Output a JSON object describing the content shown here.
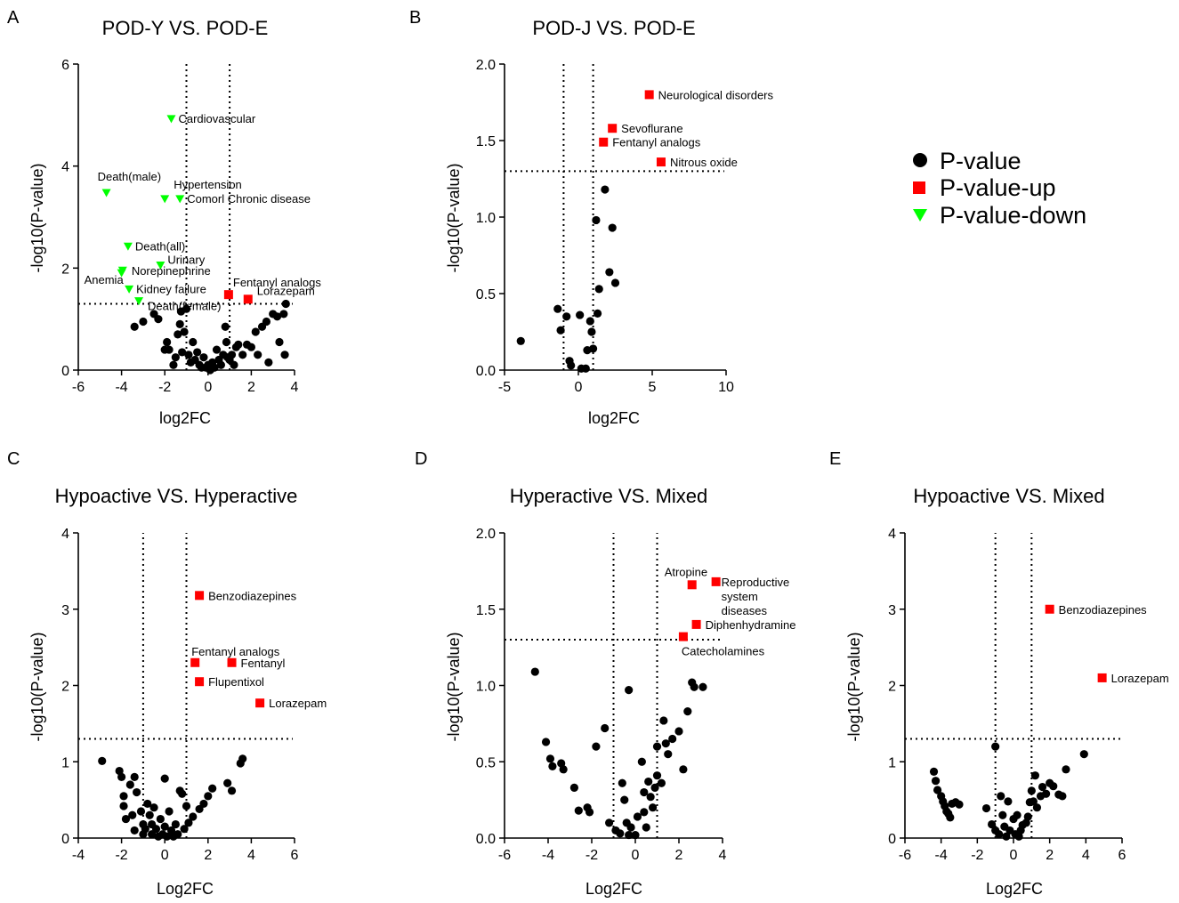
{
  "legend": {
    "items": [
      {
        "key": "circle",
        "label": "P-value",
        "color": "#000000"
      },
      {
        "key": "square",
        "label": "P-value-up",
        "color": "#ff0000"
      },
      {
        "key": "triangle",
        "label": "P-value-down",
        "color": "#00ff00"
      }
    ]
  },
  "chart_data": [
    {
      "id": "A",
      "panel_label": "A",
      "type": "scatter",
      "title": "POD-Y VS. POD-E",
      "xlabel": "log2FC",
      "ylabel": "-log10(P-value)",
      "xlim": [
        -6,
        4
      ],
      "ylim": [
        0,
        6
      ],
      "xticks": [
        -6,
        -4,
        -2,
        0,
        2,
        4
      ],
      "yticks": [
        0,
        2,
        4,
        6
      ],
      "vlines": [
        -1,
        1
      ],
      "hline": 1.3,
      "points": [
        [
          -3.4,
          0.85
        ],
        [
          -3.0,
          0.95
        ],
        [
          -2.5,
          1.1
        ],
        [
          -2.3,
          1.0
        ],
        [
          -2.0,
          0.4
        ],
        [
          -1.9,
          0.55
        ],
        [
          -1.8,
          0.4
        ],
        [
          -1.6,
          0.1
        ],
        [
          -1.5,
          0.25
        ],
        [
          -1.4,
          0.7
        ],
        [
          -1.3,
          0.9
        ],
        [
          -1.25,
          1.15
        ],
        [
          -1.2,
          0.35
        ],
        [
          -1.1,
          0.75
        ],
        [
          -1.0,
          1.2
        ],
        [
          -0.9,
          0.3
        ],
        [
          -0.8,
          0.15
        ],
        [
          -0.7,
          0.55
        ],
        [
          -0.6,
          0.2
        ],
        [
          -0.5,
          0.35
        ],
        [
          -0.4,
          0.1
        ],
        [
          -0.3,
          0.05
        ],
        [
          -0.2,
          0.25
        ],
        [
          -0.1,
          0.05
        ],
        [
          0.0,
          0.1
        ],
        [
          0.1,
          0.0
        ],
        [
          0.2,
          0.15
        ],
        [
          0.3,
          0.05
        ],
        [
          0.4,
          0.4
        ],
        [
          0.5,
          0.2
        ],
        [
          0.6,
          0.1
        ],
        [
          0.7,
          0.3
        ],
        [
          0.8,
          0.85
        ],
        [
          0.85,
          0.55
        ],
        [
          0.9,
          0.25
        ],
        [
          1.0,
          0.2
        ],
        [
          1.1,
          0.3
        ],
        [
          1.2,
          0.1
        ],
        [
          1.3,
          0.45
        ],
        [
          1.4,
          0.5
        ],
        [
          1.6,
          0.3
        ],
        [
          1.8,
          0.5
        ],
        [
          2.0,
          0.45
        ],
        [
          2.2,
          0.75
        ],
        [
          2.3,
          0.3
        ],
        [
          2.5,
          0.85
        ],
        [
          2.7,
          0.95
        ],
        [
          2.8,
          0.15
        ],
        [
          3.0,
          1.1
        ],
        [
          3.2,
          1.05
        ],
        [
          3.3,
          0.55
        ],
        [
          3.5,
          1.1
        ],
        [
          3.55,
          0.3
        ],
        [
          3.6,
          1.3
        ]
      ],
      "up": [
        {
          "x": 0.95,
          "y": 1.48,
          "label": "Fentanyl analogs"
        },
        {
          "x": 1.85,
          "y": 1.39,
          "label": "Lorazepam"
        }
      ],
      "down": [
        {
          "x": -1.7,
          "y": 4.92,
          "label": "Cardiovascular"
        },
        {
          "x": -4.7,
          "y": 3.47,
          "label": "Death(male)"
        },
        {
          "x": -2.0,
          "y": 3.35,
          "label": "Hypertension"
        },
        {
          "x": -1.3,
          "y": 3.35,
          "label": "Comorl Chronic disease"
        },
        {
          "x": -3.7,
          "y": 2.42,
          "label": "Death(all)"
        },
        {
          "x": -2.2,
          "y": 2.05,
          "label": "Urinary"
        },
        {
          "x": -3.95,
          "y": 1.95,
          "label": "Norepinephrine"
        },
        {
          "x": -4.0,
          "y": 1.9,
          "label": "Anemia"
        },
        {
          "x": -3.65,
          "y": 1.58,
          "label": "Kidney failure"
        },
        {
          "x": -3.2,
          "y": 1.35,
          "label": "Death(female)"
        }
      ]
    },
    {
      "id": "B",
      "panel_label": "B",
      "type": "scatter",
      "title": "POD-J VS. POD-E",
      "xlabel": "log2FC",
      "ylabel": "-log10(P-value)",
      "xlim": [
        -5,
        10
      ],
      "ylim": [
        0,
        2
      ],
      "xticks": [
        -5,
        0,
        5,
        10
      ],
      "yticks": [
        0.0,
        0.5,
        1.0,
        1.5,
        2.0
      ],
      "vlines": [
        -1,
        1
      ],
      "hline": 1.3,
      "points": [
        [
          -3.9,
          0.19
        ],
        [
          -1.4,
          0.4
        ],
        [
          -1.2,
          0.26
        ],
        [
          -0.8,
          0.35
        ],
        [
          -0.6,
          0.06
        ],
        [
          -0.5,
          0.03
        ],
        [
          0.1,
          0.36
        ],
        [
          0.2,
          0.01
        ],
        [
          0.5,
          0.01
        ],
        [
          0.6,
          0.13
        ],
        [
          0.8,
          0.32
        ],
        [
          0.9,
          0.25
        ],
        [
          1.0,
          0.14
        ],
        [
          1.2,
          0.98
        ],
        [
          1.3,
          0.37
        ],
        [
          1.4,
          0.53
        ],
        [
          1.8,
          1.18
        ],
        [
          2.1,
          0.64
        ],
        [
          2.3,
          0.93
        ],
        [
          2.5,
          0.57
        ]
      ],
      "up": [
        {
          "x": 4.8,
          "y": 1.8,
          "label": "Neurological disorders"
        },
        {
          "x": 2.3,
          "y": 1.58,
          "label": "Sevoflurane"
        },
        {
          "x": 1.7,
          "y": 1.49,
          "label": "Fentanyl analogs"
        },
        {
          "x": 5.6,
          "y": 1.36,
          "label": "Nitrous oxide"
        }
      ],
      "down": []
    },
    {
      "id": "C",
      "panel_label": "C",
      "type": "scatter",
      "title": "Hypoactive VS. Hyperactive",
      "xlabel": "Log2FC",
      "ylabel": "-log10(P-value)",
      "xlim": [
        -4,
        6
      ],
      "ylim": [
        0,
        4
      ],
      "xticks": [
        -4,
        -2,
        0,
        2,
        4,
        6
      ],
      "yticks": [
        0,
        1,
        2,
        3,
        4
      ],
      "vlines": [
        -1,
        1
      ],
      "hline": 1.3,
      "points": [
        [
          -2.9,
          1.01
        ],
        [
          -2.1,
          0.88
        ],
        [
          -2.0,
          0.8
        ],
        [
          -1.9,
          0.55
        ],
        [
          -1.9,
          0.42
        ],
        [
          -1.8,
          0.25
        ],
        [
          -1.6,
          0.7
        ],
        [
          -1.5,
          0.3
        ],
        [
          -1.4,
          0.8
        ],
        [
          -1.4,
          0.1
        ],
        [
          -1.3,
          0.6
        ],
        [
          -1.1,
          0.35
        ],
        [
          -1.0,
          0.18
        ],
        [
          -1.0,
          0.05
        ],
        [
          -0.9,
          0.12
        ],
        [
          -0.8,
          0.45
        ],
        [
          -0.7,
          0.3
        ],
        [
          -0.6,
          0.18
        ],
        [
          -0.6,
          0.05
        ],
        [
          -0.5,
          0.4
        ],
        [
          -0.4,
          0.12
        ],
        [
          -0.3,
          0.02
        ],
        [
          -0.2,
          0.25
        ],
        [
          -0.1,
          0.05
        ],
        [
          0.0,
          0.78
        ],
        [
          0.0,
          0.15
        ],
        [
          0.1,
          0.02
        ],
        [
          0.2,
          0.35
        ],
        [
          0.3,
          0.1
        ],
        [
          0.4,
          0.02
        ],
        [
          0.5,
          0.18
        ],
        [
          0.6,
          0.05
        ],
        [
          0.7,
          0.62
        ],
        [
          0.8,
          0.58
        ],
        [
          0.9,
          0.12
        ],
        [
          1.0,
          0.42
        ],
        [
          1.1,
          0.2
        ],
        [
          1.3,
          0.28
        ],
        [
          1.6,
          0.38
        ],
        [
          1.8,
          0.45
        ],
        [
          2.0,
          0.55
        ],
        [
          2.2,
          0.65
        ],
        [
          2.9,
          0.72
        ],
        [
          3.1,
          0.62
        ],
        [
          3.5,
          0.98
        ],
        [
          3.6,
          1.04
        ]
      ],
      "up": [
        {
          "x": 1.6,
          "y": 3.18,
          "label": "Benzodiazepines"
        },
        {
          "x": 1.4,
          "y": 2.3,
          "label": "Fentanyl analogs"
        },
        {
          "x": 3.1,
          "y": 2.3,
          "label": "Fentanyl"
        },
        {
          "x": 1.6,
          "y": 2.05,
          "label": "Flupentixol"
        },
        {
          "x": 4.4,
          "y": 1.77,
          "label": "Lorazepam"
        }
      ],
      "down": []
    },
    {
      "id": "D",
      "panel_label": "D",
      "type": "scatter",
      "title": "Hyperactive VS. Mixed",
      "xlabel": "Log2FC",
      "ylabel": "-log10(P-value)",
      "xlim": [
        -6,
        4
      ],
      "ylim": [
        0,
        2
      ],
      "xticks": [
        -6,
        -4,
        -2,
        0,
        2,
        4
      ],
      "yticks": [
        0.0,
        0.5,
        1.0,
        1.5,
        2.0
      ],
      "vlines": [
        -1,
        1
      ],
      "hline": 1.3,
      "points": [
        [
          -4.6,
          1.09
        ],
        [
          -4.1,
          0.63
        ],
        [
          -3.9,
          0.52
        ],
        [
          -3.8,
          0.47
        ],
        [
          -3.4,
          0.49
        ],
        [
          -3.3,
          0.45
        ],
        [
          -2.8,
          0.33
        ],
        [
          -2.6,
          0.18
        ],
        [
          -2.2,
          0.2
        ],
        [
          -2.1,
          0.17
        ],
        [
          -1.8,
          0.6
        ],
        [
          -1.4,
          0.72
        ],
        [
          -1.2,
          0.1
        ],
        [
          -0.9,
          0.05
        ],
        [
          -0.7,
          0.03
        ],
        [
          -0.6,
          0.36
        ],
        [
          -0.5,
          0.25
        ],
        [
          -0.4,
          0.1
        ],
        [
          -0.3,
          0.97
        ],
        [
          -0.3,
          0.02
        ],
        [
          -0.2,
          0.07
        ],
        [
          0.0,
          0.02
        ],
        [
          0.1,
          0.14
        ],
        [
          0.3,
          0.5
        ],
        [
          0.4,
          0.3
        ],
        [
          0.4,
          0.17
        ],
        [
          0.5,
          0.07
        ],
        [
          0.6,
          0.37
        ],
        [
          0.7,
          0.27
        ],
        [
          0.8,
          0.2
        ],
        [
          0.9,
          0.33
        ],
        [
          1.0,
          0.41
        ],
        [
          1.0,
          0.6
        ],
        [
          1.2,
          0.36
        ],
        [
          1.3,
          0.77
        ],
        [
          1.4,
          0.62
        ],
        [
          1.5,
          0.55
        ],
        [
          1.7,
          0.65
        ],
        [
          2.0,
          0.7
        ],
        [
          2.2,
          0.45
        ],
        [
          2.4,
          0.83
        ],
        [
          2.6,
          1.02
        ],
        [
          2.7,
          0.99
        ],
        [
          3.1,
          0.99
        ]
      ],
      "up": [
        {
          "x": 2.6,
          "y": 1.66,
          "label": "Atropine"
        },
        {
          "x": 3.7,
          "y": 1.68,
          "label": "Reproductive system diseases"
        },
        {
          "x": 2.8,
          "y": 1.4,
          "label": "Diphenhydramine"
        },
        {
          "x": 2.2,
          "y": 1.32,
          "label": "Catecholamines"
        }
      ],
      "down": []
    },
    {
      "id": "E",
      "panel_label": "E",
      "type": "scatter",
      "title": "Hypoactive VS. Mixed",
      "xlabel": "Log2FC",
      "ylabel": "-log10(P-value)",
      "xlim": [
        -6,
        6
      ],
      "ylim": [
        0,
        4
      ],
      "xticks": [
        -6,
        -4,
        -2,
        0,
        2,
        4,
        6
      ],
      "yticks": [
        0,
        1,
        2,
        3,
        4
      ],
      "vlines": [
        -1,
        1
      ],
      "hline": 1.3,
      "points": [
        [
          -4.4,
          0.87
        ],
        [
          -4.3,
          0.75
        ],
        [
          -4.2,
          0.63
        ],
        [
          -4.0,
          0.55
        ],
        [
          -3.9,
          0.48
        ],
        [
          -3.8,
          0.42
        ],
        [
          -3.7,
          0.35
        ],
        [
          -3.6,
          0.32
        ],
        [
          -3.5,
          0.27
        ],
        [
          -3.4,
          0.45
        ],
        [
          -3.2,
          0.47
        ],
        [
          -3.0,
          0.44
        ],
        [
          -1.5,
          0.39
        ],
        [
          -1.0,
          1.2
        ],
        [
          -1.2,
          0.18
        ],
        [
          -1.0,
          0.1
        ],
        [
          -0.8,
          0.05
        ],
        [
          -0.7,
          0.55
        ],
        [
          -0.6,
          0.3
        ],
        [
          -0.5,
          0.15
        ],
        [
          -0.4,
          0.02
        ],
        [
          -0.3,
          0.48
        ],
        [
          -0.2,
          0.1
        ],
        [
          0.0,
          0.25
        ],
        [
          0.1,
          0.05
        ],
        [
          0.2,
          0.3
        ],
        [
          0.3,
          0.02
        ],
        [
          0.4,
          0.1
        ],
        [
          0.5,
          0.17
        ],
        [
          0.7,
          0.2
        ],
        [
          0.8,
          0.28
        ],
        [
          0.9,
          0.47
        ],
        [
          1.0,
          0.62
        ],
        [
          1.1,
          0.48
        ],
        [
          1.2,
          0.82
        ],
        [
          1.3,
          0.4
        ],
        [
          1.5,
          0.55
        ],
        [
          1.6,
          0.67
        ],
        [
          1.8,
          0.58
        ],
        [
          2.0,
          0.72
        ],
        [
          2.2,
          0.68
        ],
        [
          2.5,
          0.57
        ],
        [
          2.7,
          0.55
        ],
        [
          2.9,
          0.9
        ],
        [
          3.9,
          1.1
        ]
      ],
      "up": [
        {
          "x": 2.0,
          "y": 3.0,
          "label": "Benzodiazepines"
        },
        {
          "x": 4.9,
          "y": 2.1,
          "label": "Lorazepam"
        }
      ],
      "down": []
    }
  ]
}
